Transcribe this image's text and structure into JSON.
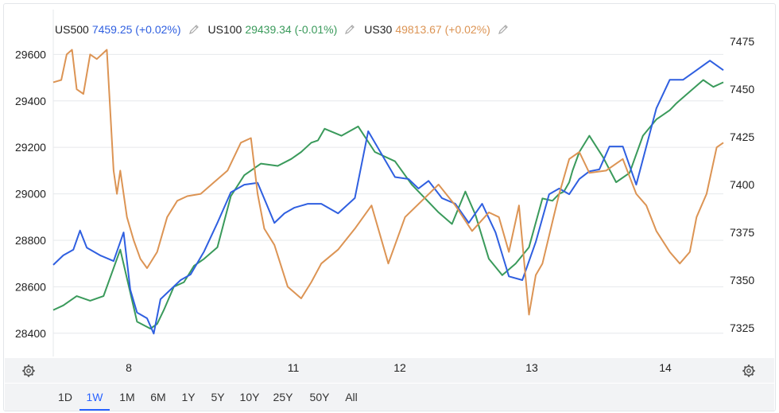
{
  "legend": [
    {
      "symbol": "US500",
      "value": "7459.25 (+0.02%)",
      "color": "#2f5fe0"
    },
    {
      "symbol": "US100",
      "value": "29439.34 (-0.01%)",
      "color": "#3a9a5b"
    },
    {
      "symbol": "US30",
      "value": "49813.67 (+0.02%)",
      "color": "#dc9454"
    }
  ],
  "range_buttons": [
    "1D",
    "1W",
    "1M",
    "6M",
    "1Y",
    "5Y",
    "10Y",
    "25Y",
    "50Y",
    "All"
  ],
  "active_range": "1W",
  "icons": {
    "edit": "pencil-icon",
    "settings": "gear-icon"
  },
  "chart_data": {
    "type": "line",
    "x_tick_labels": [
      "8",
      "11",
      "12",
      "13",
      "14"
    ],
    "left_axis": {
      "ticks": [
        29600,
        29400,
        29200,
        29000,
        28800,
        28600,
        28400
      ],
      "range": [
        28300,
        29680
      ]
    },
    "right_axis": {
      "ticks": [
        7475,
        7450,
        7425,
        7400,
        7375,
        7350,
        7325
      ],
      "range": [
        7310,
        7478
      ]
    },
    "grid": true,
    "x_range": [
      0,
      10
    ],
    "series": [
      {
        "name": "US100",
        "axis": "left",
        "color": "#3a9a5b",
        "x": [
          0.0,
          0.15,
          0.35,
          0.55,
          0.75,
          1.0,
          1.25,
          1.45,
          1.55,
          1.65,
          1.8,
          1.95,
          2.1,
          2.25,
          2.45,
          2.65,
          2.85,
          3.1,
          3.35,
          3.55,
          3.7,
          3.85,
          3.95,
          4.05,
          4.3,
          4.55,
          4.8,
          5.1,
          5.35,
          5.55,
          5.75,
          5.95,
          6.15,
          6.3,
          6.5,
          6.7,
          6.9,
          7.1,
          7.3,
          7.45,
          7.55,
          7.62,
          7.7,
          7.75,
          7.85,
          8.0,
          8.2,
          8.4,
          8.6,
          8.8,
          9.0,
          9.1,
          9.2,
          9.3,
          9.5,
          9.7,
          9.85,
          10.0
        ],
        "y": [
          28500,
          28520,
          28560,
          28540,
          28560,
          28760,
          28450,
          28420,
          28440,
          28500,
          28600,
          28620,
          28690,
          28720,
          28770,
          28990,
          29080,
          29130,
          29120,
          29150,
          29180,
          29220,
          29230,
          29280,
          29250,
          29290,
          29180,
          29140,
          29040,
          28980,
          28920,
          28870,
          29010,
          28910,
          28720,
          28650,
          28700,
          28770,
          28980,
          28970,
          29000,
          29010,
          29050,
          29100,
          29180,
          29250,
          29160,
          29050,
          29090,
          29250,
          29320,
          29340,
          29360,
          29390,
          29440,
          29490,
          29460,
          29480
        ]
      },
      {
        "name": "US500",
        "axis": "right",
        "color": "#2f5fe0",
        "x": [
          0.0,
          0.15,
          0.3,
          0.4,
          0.5,
          0.7,
          0.9,
          1.05,
          1.15,
          1.25,
          1.4,
          1.5,
          1.6,
          1.75,
          1.9,
          2.05,
          2.25,
          2.45,
          2.65,
          2.85,
          3.05,
          3.3,
          3.45,
          3.6,
          3.8,
          4.0,
          4.25,
          4.5,
          4.7,
          4.9,
          5.1,
          5.3,
          5.45,
          5.6,
          5.8,
          6.0,
          6.2,
          6.4,
          6.6,
          6.8,
          7.0,
          7.2,
          7.4,
          7.55,
          7.7,
          7.85,
          8.0,
          8.15,
          8.3,
          8.5,
          8.7,
          9.0,
          9.2,
          9.4,
          9.6,
          9.8,
          10.0
        ],
        "y": [
          7358,
          7363,
          7366,
          7376,
          7367,
          7363,
          7360,
          7375,
          7345,
          7333,
          7330,
          7322,
          7340,
          7345,
          7350,
          7353,
          7365,
          7380,
          7396,
          7400,
          7401,
          7380,
          7385,
          7388,
          7390,
          7390,
          7385,
          7393,
          7428,
          7416,
          7404,
          7403,
          7398,
          7402,
          7393,
          7390,
          7380,
          7390,
          7375,
          7352,
          7350,
          7370,
          7395,
          7398,
          7395,
          7403,
          7407,
          7408,
          7420,
          7420,
          7400,
          7440,
          7455,
          7455,
          7460,
          7465,
          7460
        ]
      },
      {
        "name": "US30",
        "axis": "left",
        "color": "#dc9454",
        "x": [
          0.0,
          0.12,
          0.2,
          0.28,
          0.35,
          0.45,
          0.55,
          0.65,
          0.8,
          0.9,
          0.95,
          1.0,
          1.1,
          1.2,
          1.3,
          1.4,
          1.55,
          1.7,
          1.85,
          2.0,
          2.2,
          2.4,
          2.6,
          2.8,
          2.95,
          3.05,
          3.15,
          3.3,
          3.5,
          3.7,
          3.85,
          4.0,
          4.25,
          4.5,
          4.75,
          5.0,
          5.25,
          5.5,
          5.75,
          6.0,
          6.25,
          6.5,
          6.65,
          6.8,
          6.95,
          7.1,
          7.2,
          7.3,
          7.45,
          7.55,
          7.7,
          7.85,
          8.0,
          8.25,
          8.5,
          8.7,
          8.85,
          9.0,
          9.2,
          9.35,
          9.5,
          9.6,
          9.75,
          9.9,
          10.0
        ],
        "y": [
          29480,
          29490,
          29600,
          29620,
          29450,
          29430,
          29600,
          29580,
          29620,
          29100,
          29000,
          29100,
          28900,
          28800,
          28720,
          28680,
          28750,
          28900,
          28970,
          28990,
          29000,
          29050,
          29100,
          29220,
          29240,
          29000,
          28850,
          28780,
          28600,
          28550,
          28620,
          28700,
          28760,
          28850,
          28950,
          28700,
          28900,
          28970,
          29040,
          28950,
          28840,
          28920,
          28900,
          28750,
          28950,
          28480,
          28650,
          28700,
          28880,
          29000,
          29150,
          29180,
          29090,
          29100,
          29150,
          29000,
          28950,
          28840,
          28750,
          28700,
          28750,
          28900,
          29000,
          29200,
          29220
        ]
      }
    ]
  }
}
